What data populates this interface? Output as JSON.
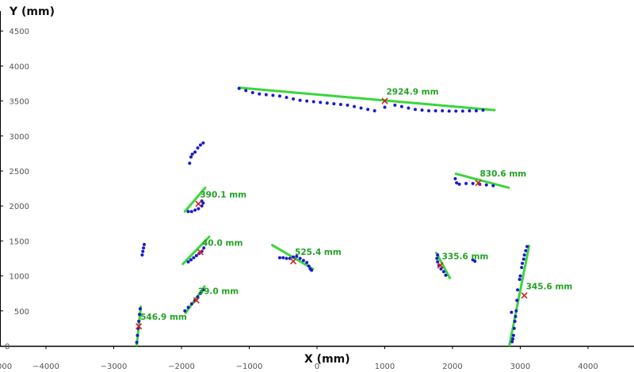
{
  "chart_data": {
    "type": "scatter",
    "title": "",
    "xlabel": "X (mm)",
    "ylabel": "Y (mm)",
    "xlim": [
      -4600,
      4800
    ],
    "ylim": [
      0,
      4800
    ],
    "grid": false,
    "x_ticks": [
      -4000,
      -3000,
      -2000,
      -1000,
      0,
      1000,
      2000,
      3000,
      4000
    ],
    "x_tick_labels": [
      "−4000",
      "−3000",
      "−2000",
      "−1000",
      "0",
      "1000",
      "2000",
      "3000",
      "4000"
    ],
    "x_partial_tick_label": "000",
    "y_ticks": [
      500,
      1000,
      1500,
      2000,
      2500,
      3000,
      3500,
      4000,
      4500
    ],
    "y_tick_labels": [
      "500",
      "1000",
      "1500",
      "2000",
      "2500",
      "3000",
      "3500",
      "4000",
      "4500"
    ],
    "y_zero_label": "0",
    "colors": {
      "points": "#1a1acc",
      "segments": "#3ad63a",
      "labels": "#22a322",
      "centers": "#cc2222"
    },
    "points": [
      [
        -1150,
        3680
      ],
      [
        -1050,
        3650
      ],
      [
        -950,
        3620
      ],
      [
        -850,
        3600
      ],
      [
        -750,
        3590
      ],
      [
        -650,
        3580
      ],
      [
        -550,
        3570
      ],
      [
        -450,
        3550
      ],
      [
        -350,
        3530
      ],
      [
        -250,
        3510
      ],
      [
        -150,
        3500
      ],
      [
        -50,
        3490
      ],
      [
        50,
        3480
      ],
      [
        150,
        3470
      ],
      [
        250,
        3460
      ],
      [
        350,
        3450
      ],
      [
        450,
        3440
      ],
      [
        550,
        3420
      ],
      [
        650,
        3400
      ],
      [
        750,
        3380
      ],
      [
        850,
        3360
      ],
      [
        1000,
        3410
      ],
      [
        1150,
        3440
      ],
      [
        1250,
        3420
      ],
      [
        1350,
        3400
      ],
      [
        1450,
        3380
      ],
      [
        1550,
        3370
      ],
      [
        1650,
        3360
      ],
      [
        1750,
        3360
      ],
      [
        1850,
        3360
      ],
      [
        1950,
        3355
      ],
      [
        2050,
        3355
      ],
      [
        2150,
        3355
      ],
      [
        2250,
        3360
      ],
      [
        2350,
        3360
      ],
      [
        2450,
        3370
      ],
      [
        -1680,
        2900
      ],
      [
        -1720,
        2870
      ],
      [
        -1760,
        2830
      ],
      [
        -1800,
        2770
      ],
      [
        -1840,
        2740
      ],
      [
        -1860,
        2700
      ],
      [
        -1880,
        2610
      ],
      [
        -1900,
        1920
      ],
      [
        -1850,
        1920
      ],
      [
        -1800,
        1940
      ],
      [
        -1750,
        1960
      ],
      [
        -1700,
        2000
      ],
      [
        -1680,
        2040
      ],
      [
        -1700,
        2070
      ],
      [
        -2550,
        1450
      ],
      [
        -2560,
        1400
      ],
      [
        -2570,
        1350
      ],
      [
        -2580,
        1300
      ],
      [
        -1900,
        1200
      ],
      [
        -1860,
        1230
      ],
      [
        -1820,
        1260
      ],
      [
        -1780,
        1290
      ],
      [
        -1740,
        1320
      ],
      [
        -1700,
        1350
      ],
      [
        -1670,
        1400
      ],
      [
        -1950,
        500
      ],
      [
        -1900,
        550
      ],
      [
        -1850,
        600
      ],
      [
        -1800,
        650
      ],
      [
        -1760,
        700
      ],
      [
        -1720,
        750
      ],
      [
        -1680,
        800
      ],
      [
        -2660,
        50
      ],
      [
        -2650,
        150
      ],
      [
        -2640,
        250
      ],
      [
        -2630,
        350
      ],
      [
        -2620,
        450
      ],
      [
        -2610,
        530
      ],
      [
        -550,
        1260
      ],
      [
        -500,
        1260
      ],
      [
        -450,
        1250
      ],
      [
        -400,
        1250
      ],
      [
        -350,
        1270
      ],
      [
        -300,
        1280
      ],
      [
        -250,
        1250
      ],
      [
        -200,
        1220
      ],
      [
        -150,
        1190
      ],
      [
        -120,
        1140
      ],
      [
        -100,
        1100
      ],
      [
        -80,
        1080
      ],
      [
        1780,
        1300
      ],
      [
        1770,
        1250
      ],
      [
        1780,
        1200
      ],
      [
        1800,
        1150
      ],
      [
        1830,
        1100
      ],
      [
        1870,
        1060
      ],
      [
        1900,
        1010
      ],
      [
        2300,
        1230
      ],
      [
        2330,
        1210
      ],
      [
        2040,
        2390
      ],
      [
        2060,
        2330
      ],
      [
        2100,
        2310
      ],
      [
        2200,
        2320
      ],
      [
        2300,
        2320
      ],
      [
        2400,
        2310
      ],
      [
        2500,
        2300
      ],
      [
        2600,
        2290
      ],
      [
        3100,
        1420
      ],
      [
        3080,
        1360
      ],
      [
        3060,
        1300
      ],
      [
        3050,
        1240
      ],
      [
        3030,
        1180
      ],
      [
        3020,
        1120
      ],
      [
        3000,
        1000
      ],
      [
        2990,
        950
      ],
      [
        2960,
        800
      ],
      [
        2950,
        650
      ],
      [
        2940,
        500
      ],
      [
        2930,
        420
      ],
      [
        2920,
        350
      ],
      [
        2910,
        250
      ],
      [
        2900,
        150
      ],
      [
        2890,
        100
      ],
      [
        2880,
        60
      ],
      [
        2870,
        480
      ]
    ],
    "segments": [
      {
        "x": [
          -1150,
          2620
        ],
        "y": [
          3690,
          3370
        ],
        "label": "2924.9 mm",
        "center": [
          1000,
          3500
        ]
      },
      {
        "x": [
          2050,
          2830
        ],
        "y": [
          2460,
          2260
        ],
        "label": "830.6 mm",
        "center": [
          2380,
          2330
        ]
      },
      {
        "x": [
          -1950,
          -1650
        ],
        "y": [
          1920,
          2260
        ],
        "label": "390.1 mm",
        "center": [
          -1750,
          2030
        ]
      },
      {
        "x": [
          -1980,
          -1590
        ],
        "y": [
          1170,
          1560
        ],
        "label": "40.0 mm",
        "center": [
          -1720,
          1340
        ]
      },
      {
        "x": [
          -1940,
          -1660
        ],
        "y": [
          470,
          850
        ],
        "label": "39.0 mm",
        "center": [
          -1780,
          650
        ]
      },
      {
        "x": [
          -2660,
          -2600
        ],
        "y": [
          10,
          560
        ],
        "label": "546.9 mm",
        "center": [
          -2630,
          280
        ]
      },
      {
        "x": [
          -660,
          -60
        ],
        "y": [
          1440,
          1100
        ],
        "label": "525.4 mm",
        "center": [
          -350,
          1210
        ]
      },
      {
        "x": [
          1760,
          1960
        ],
        "y": [
          1330,
          970
        ],
        "label": "335.6 mm",
        "center": [
          1820,
          1150
        ]
      },
      {
        "x": [
          2840,
          3130
        ],
        "y": [
          10,
          1430
        ],
        "label": "345.6 mm",
        "center": [
          3060,
          720
        ]
      }
    ]
  }
}
